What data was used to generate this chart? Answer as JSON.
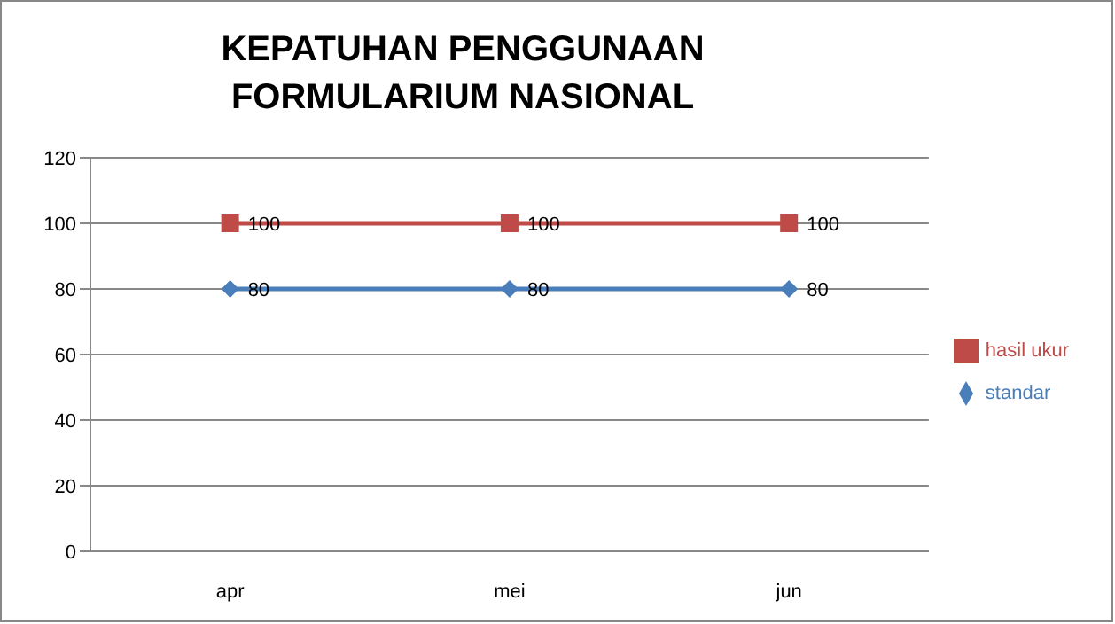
{
  "chart_data": {
    "type": "line",
    "title": "KEPATUHAN PENGGUNAAN FORMULARIUM NASIONAL",
    "categories": [
      "apr",
      "mei",
      "jun"
    ],
    "series": [
      {
        "name": "standar",
        "color": "#4a7ebb",
        "values": [
          80,
          80,
          80
        ],
        "marker": "diamond"
      },
      {
        "name": "hasil ukur",
        "color": "#be4b48",
        "values": [
          100,
          100,
          100
        ],
        "marker": "square"
      }
    ],
    "ylim": [
      0,
      120
    ],
    "yticks": [
      0,
      20,
      40,
      60,
      80,
      100,
      120
    ],
    "grid": "y",
    "legend": "right",
    "data_labels": true,
    "line_style": "solid"
  }
}
